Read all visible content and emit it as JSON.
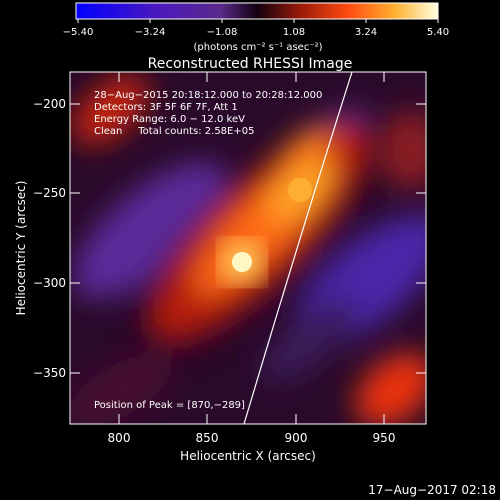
{
  "colorbar": {
    "ticks": [
      "−5.40",
      "−3.24",
      "−1.08",
      "1.08",
      "3.24",
      "5.40"
    ],
    "unit_label": "(photons cm⁻² s⁻¹ asec⁻²)"
  },
  "plot": {
    "title": "Reconstructed RHESSI Image",
    "xlabel": "Heliocentric X (arcsec)",
    "ylabel": "Heliocentric Y (arcsec)",
    "x_ticks": [
      "800",
      "850",
      "900",
      "950"
    ],
    "y_ticks": [
      "−200",
      "−250",
      "−300",
      "−350"
    ],
    "xlim": [
      778,
      970
    ],
    "ylim": [
      -378,
      -183
    ]
  },
  "info": {
    "line1": "28−Aug−2015 20:18:12.000 to 20:28:12.000",
    "line2": "Detectors: 3F 5F 6F 7F, Att 1",
    "line3": "Energy Range: 6.0 − 12.0 keV",
    "line4": "Clean     Total counts: 2.58E+05",
    "peak": "Position of Peak = [870,−289]"
  },
  "timestamp": "17−Aug−2017 02:18",
  "colors": {
    "background": "#000000",
    "colormap": [
      "#0000ff",
      "#3a18c8",
      "#6a2c9c",
      "#220020",
      "#8a1a0a",
      "#e8200a",
      "#ff8a18",
      "#ffe070",
      "#ffffff"
    ]
  }
}
